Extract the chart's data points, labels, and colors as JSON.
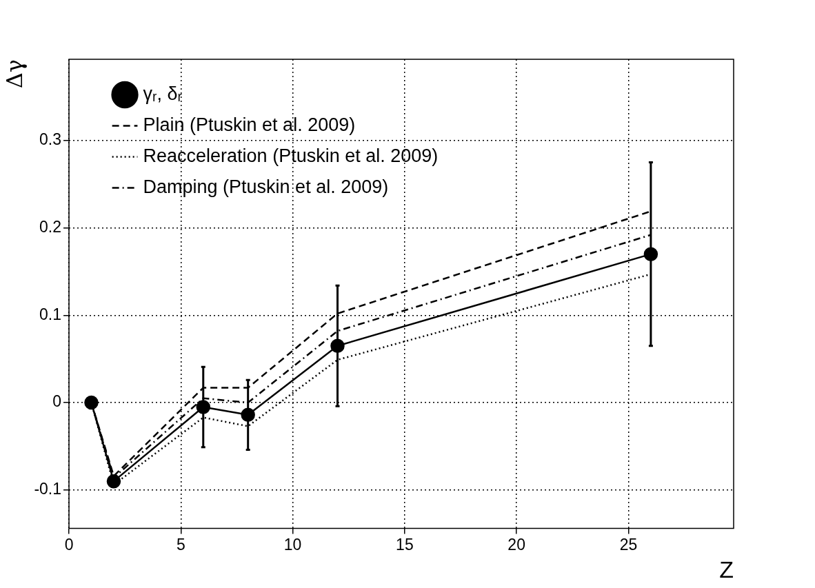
{
  "chart_data": {
    "type": "line",
    "xlabel": "Z",
    "ylabel": "Δγ",
    "xlim": [
      0,
      29.7
    ],
    "xticks": [
      0,
      5,
      10,
      15,
      20,
      25
    ],
    "ylim": [
      -0.144,
      0.393
    ],
    "yticks": [
      -0.1,
      0,
      0.1,
      0.2,
      0.3
    ],
    "grid": true,
    "legend": "top left",
    "series": [
      {
        "name": "γᵣ, δᵣ",
        "color": "#000000",
        "x": [
          1,
          2,
          6,
          8,
          12,
          26
        ],
        "values": [
          0,
          -0.09,
          -0.005,
          -0.014,
          0.065,
          0.17
        ],
        "errors": [
          null,
          null,
          0.046,
          0.04,
          0.069,
          0.105
        ],
        "marker": "circle",
        "line_style": "solid"
      },
      {
        "name": "Plain (Ptuskin et al. 2009)",
        "color": "#000000",
        "x": [
          1,
          2,
          6,
          8,
          12,
          26
        ],
        "values": [
          0,
          -0.084,
          0.017,
          0.017,
          0.102,
          0.219
        ],
        "marker": "none",
        "line_style": "dashed"
      },
      {
        "name": "Reacceleration (Ptuskin et al. 2009)",
        "color": "#000000",
        "x": [
          1,
          2,
          6,
          8,
          12,
          26
        ],
        "values": [
          0,
          -0.094,
          -0.017,
          -0.027,
          0.049,
          0.147
        ],
        "marker": "none",
        "line_style": "dotted"
      },
      {
        "name": "Damping (Ptuskin et al. 2009)",
        "color": "#000000",
        "x": [
          1,
          2,
          6,
          8,
          12,
          26
        ],
        "values": [
          0,
          -0.086,
          0.005,
          0,
          0.082,
          0.192
        ],
        "marker": "none",
        "line_style": "dashdot"
      }
    ]
  }
}
